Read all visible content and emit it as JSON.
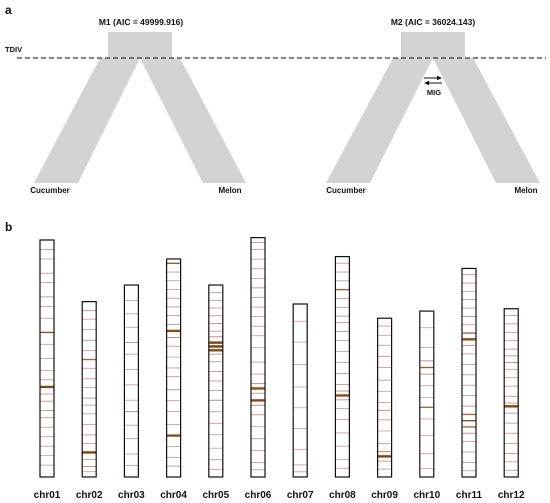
{
  "panel_a": {
    "label": "a",
    "tdiv_label": "TDIV",
    "models": [
      {
        "title": "M1 (AIC = 49999.916)",
        "left_pop": "Cucumber",
        "right_pop": "Melon",
        "migration": false
      },
      {
        "title": "M2 (AIC = 36024.143)",
        "left_pop": "Cucumber",
        "right_pop": "Melon",
        "migration": true,
        "migration_label": "MIG"
      }
    ]
  },
  "panel_b": {
    "label": "b",
    "chromosomes": [
      {
        "name": "chr01",
        "length": 1.0,
        "bands": [
          [
            0.04,
            0.3
          ],
          [
            0.08,
            0.2
          ],
          [
            0.14,
            0.25
          ],
          [
            0.18,
            0.2
          ],
          [
            0.24,
            0.3
          ],
          [
            0.28,
            0.2
          ],
          [
            0.33,
            0.2
          ],
          [
            0.39,
            0.8
          ],
          [
            0.44,
            0.25
          ],
          [
            0.5,
            0.2
          ],
          [
            0.55,
            0.25
          ],
          [
            0.59,
            0.3
          ],
          [
            0.62,
            0.9
          ],
          [
            0.65,
            0.3
          ],
          [
            0.68,
            0.35
          ],
          [
            0.72,
            0.4
          ],
          [
            0.75,
            0.3
          ],
          [
            0.79,
            0.25
          ],
          [
            0.83,
            0.2
          ],
          [
            0.87,
            0.25
          ],
          [
            0.91,
            0.2
          ],
          [
            0.95,
            0.25
          ]
        ]
      },
      {
        "name": "chr02",
        "length": 0.74,
        "bands": [
          [
            0.05,
            0.3
          ],
          [
            0.1,
            0.2
          ],
          [
            0.16,
            0.25
          ],
          [
            0.22,
            0.35
          ],
          [
            0.28,
            0.3
          ],
          [
            0.33,
            0.6
          ],
          [
            0.38,
            0.25
          ],
          [
            0.44,
            0.3
          ],
          [
            0.49,
            0.2
          ],
          [
            0.55,
            0.4
          ],
          [
            0.59,
            0.3
          ],
          [
            0.64,
            0.25
          ],
          [
            0.7,
            0.2
          ],
          [
            0.76,
            0.25
          ],
          [
            0.81,
            0.3
          ],
          [
            0.86,
            0.95
          ],
          [
            0.9,
            0.3
          ],
          [
            0.94,
            0.4
          ],
          [
            0.97,
            0.25
          ]
        ]
      },
      {
        "name": "chr03",
        "length": 0.81,
        "bands": [
          [
            0.08,
            0.2
          ],
          [
            0.15,
            0.25
          ],
          [
            0.22,
            0.2
          ],
          [
            0.3,
            0.45
          ],
          [
            0.36,
            0.25
          ],
          [
            0.44,
            0.2
          ],
          [
            0.52,
            0.25
          ],
          [
            0.6,
            0.2
          ],
          [
            0.66,
            0.5
          ],
          [
            0.73,
            0.2
          ],
          [
            0.8,
            0.25
          ],
          [
            0.88,
            0.2
          ],
          [
            0.94,
            0.25
          ]
        ]
      },
      {
        "name": "chr04",
        "length": 0.92,
        "bands": [
          [
            0.02,
            0.7
          ],
          [
            0.06,
            0.3
          ],
          [
            0.1,
            0.25
          ],
          [
            0.14,
            0.2
          ],
          [
            0.18,
            0.3
          ],
          [
            0.22,
            0.25
          ],
          [
            0.26,
            0.3
          ],
          [
            0.3,
            0.35
          ],
          [
            0.33,
            0.85
          ],
          [
            0.36,
            0.5
          ],
          [
            0.4,
            0.3
          ],
          [
            0.45,
            0.2
          ],
          [
            0.5,
            0.25
          ],
          [
            0.54,
            0.3
          ],
          [
            0.6,
            0.4
          ],
          [
            0.65,
            0.25
          ],
          [
            0.7,
            0.2
          ],
          [
            0.76,
            0.3
          ],
          [
            0.81,
            0.85
          ],
          [
            0.86,
            0.3
          ],
          [
            0.91,
            0.25
          ],
          [
            0.95,
            0.3
          ]
        ]
      },
      {
        "name": "chr05",
        "length": 0.81,
        "bands": [
          [
            0.04,
            0.3
          ],
          [
            0.08,
            0.2
          ],
          [
            0.12,
            0.25
          ],
          [
            0.16,
            0.3
          ],
          [
            0.2,
            0.35
          ],
          [
            0.24,
            0.3
          ],
          [
            0.27,
            0.5
          ],
          [
            0.3,
            0.95
          ],
          [
            0.32,
            1.0
          ],
          [
            0.34,
            0.9
          ],
          [
            0.36,
            0.4
          ],
          [
            0.4,
            0.3
          ],
          [
            0.45,
            0.25
          ],
          [
            0.5,
            0.3
          ],
          [
            0.55,
            0.25
          ],
          [
            0.6,
            0.5
          ],
          [
            0.66,
            0.25
          ],
          [
            0.72,
            0.3
          ],
          [
            0.78,
            0.25
          ],
          [
            0.85,
            0.2
          ],
          [
            0.91,
            0.3
          ],
          [
            0.96,
            0.25
          ]
        ]
      },
      {
        "name": "chr06",
        "length": 1.01,
        "bands": [
          [
            0.02,
            0.3
          ],
          [
            0.05,
            0.25
          ],
          [
            0.09,
            0.2
          ],
          [
            0.13,
            0.3
          ],
          [
            0.17,
            0.25
          ],
          [
            0.21,
            0.4
          ],
          [
            0.25,
            0.3
          ],
          [
            0.29,
            0.2
          ],
          [
            0.33,
            0.25
          ],
          [
            0.37,
            0.3
          ],
          [
            0.41,
            0.25
          ],
          [
            0.46,
            0.2
          ],
          [
            0.52,
            0.25
          ],
          [
            0.57,
            0.3
          ],
          [
            0.61,
            0.5
          ],
          [
            0.63,
            0.85
          ],
          [
            0.65,
            0.4
          ],
          [
            0.68,
            0.9
          ],
          [
            0.7,
            0.5
          ],
          [
            0.74,
            0.3
          ],
          [
            0.79,
            0.25
          ],
          [
            0.84,
            0.3
          ],
          [
            0.89,
            0.25
          ],
          [
            0.94,
            0.3
          ],
          [
            0.97,
            0.2
          ]
        ]
      },
      {
        "name": "chr07",
        "length": 0.73,
        "bands": [
          [
            0.1,
            0.15
          ],
          [
            0.22,
            0.15
          ],
          [
            0.35,
            0.15
          ],
          [
            0.48,
            0.15
          ],
          [
            0.6,
            0.15
          ],
          [
            0.72,
            0.15
          ],
          [
            0.84,
            0.15
          ],
          [
            0.93,
            0.2
          ],
          [
            0.97,
            0.25
          ]
        ]
      },
      {
        "name": "chr08",
        "length": 0.93,
        "bands": [
          [
            0.03,
            0.3
          ],
          [
            0.07,
            0.25
          ],
          [
            0.11,
            0.3
          ],
          [
            0.15,
            0.7
          ],
          [
            0.19,
            0.3
          ],
          [
            0.23,
            0.25
          ],
          [
            0.27,
            0.35
          ],
          [
            0.3,
            0.4
          ],
          [
            0.34,
            0.3
          ],
          [
            0.38,
            0.25
          ],
          [
            0.43,
            0.2
          ],
          [
            0.48,
            0.25
          ],
          [
            0.53,
            0.3
          ],
          [
            0.58,
            0.3
          ],
          [
            0.61,
            0.5
          ],
          [
            0.63,
            0.85
          ],
          [
            0.65,
            0.4
          ],
          [
            0.69,
            0.3
          ],
          [
            0.74,
            0.25
          ],
          [
            0.8,
            0.2
          ],
          [
            0.86,
            0.25
          ],
          [
            0.92,
            0.2
          ],
          [
            0.96,
            0.25
          ]
        ]
      },
      {
        "name": "chr09",
        "length": 0.67,
        "bands": [
          [
            0.05,
            0.25
          ],
          [
            0.11,
            0.2
          ],
          [
            0.17,
            0.3
          ],
          [
            0.24,
            0.35
          ],
          [
            0.31,
            0.25
          ],
          [
            0.39,
            0.3
          ],
          [
            0.46,
            0.2
          ],
          [
            0.53,
            0.25
          ],
          [
            0.58,
            0.4
          ],
          [
            0.64,
            0.25
          ],
          [
            0.71,
            0.2
          ],
          [
            0.79,
            0.3
          ],
          [
            0.84,
            0.45
          ],
          [
            0.87,
            0.95
          ],
          [
            0.9,
            0.35
          ],
          [
            0.95,
            0.25
          ]
        ]
      },
      {
        "name": "chr10",
        "length": 0.7,
        "bands": [
          [
            0.1,
            0.15
          ],
          [
            0.22,
            0.2
          ],
          [
            0.3,
            0.5
          ],
          [
            0.34,
            0.7
          ],
          [
            0.38,
            0.4
          ],
          [
            0.45,
            0.2
          ],
          [
            0.52,
            0.15
          ],
          [
            0.58,
            0.6
          ],
          [
            0.65,
            0.2
          ],
          [
            0.75,
            0.15
          ],
          [
            0.86,
            0.2
          ],
          [
            0.95,
            0.2
          ]
        ]
      },
      {
        "name": "chr11",
        "length": 0.88,
        "bands": [
          [
            0.03,
            0.3
          ],
          [
            0.07,
            0.25
          ],
          [
            0.11,
            0.2
          ],
          [
            0.15,
            0.3
          ],
          [
            0.19,
            0.25
          ],
          [
            0.23,
            0.3
          ],
          [
            0.27,
            0.25
          ],
          [
            0.31,
            0.6
          ],
          [
            0.34,
            0.85
          ],
          [
            0.37,
            0.4
          ],
          [
            0.41,
            0.3
          ],
          [
            0.46,
            0.25
          ],
          [
            0.51,
            0.3
          ],
          [
            0.56,
            0.25
          ],
          [
            0.61,
            0.3
          ],
          [
            0.66,
            0.35
          ],
          [
            0.7,
            0.6
          ],
          [
            0.73,
            0.8
          ],
          [
            0.76,
            0.6
          ],
          [
            0.79,
            0.4
          ],
          [
            0.83,
            0.3
          ],
          [
            0.88,
            0.25
          ],
          [
            0.93,
            0.3
          ],
          [
            0.97,
            0.25
          ]
        ]
      },
      {
        "name": "chr12",
        "length": 0.71,
        "bands": [
          [
            0.04,
            0.3
          ],
          [
            0.09,
            0.25
          ],
          [
            0.14,
            0.3
          ],
          [
            0.19,
            0.25
          ],
          [
            0.24,
            0.3
          ],
          [
            0.28,
            0.35
          ],
          [
            0.32,
            0.5
          ],
          [
            0.36,
            0.3
          ],
          [
            0.41,
            0.25
          ],
          [
            0.46,
            0.3
          ],
          [
            0.52,
            0.35
          ],
          [
            0.56,
            0.3
          ],
          [
            0.58,
            0.9
          ],
          [
            0.62,
            0.3
          ],
          [
            0.68,
            0.25
          ],
          [
            0.74,
            0.3
          ],
          [
            0.8,
            0.25
          ],
          [
            0.86,
            0.3
          ],
          [
            0.91,
            0.25
          ],
          [
            0.96,
            0.3
          ]
        ]
      }
    ]
  },
  "colors": {
    "trunk": "#d3d3d3",
    "band_dark": "#7a3e05",
    "band_light": "#f3a3b4"
  }
}
